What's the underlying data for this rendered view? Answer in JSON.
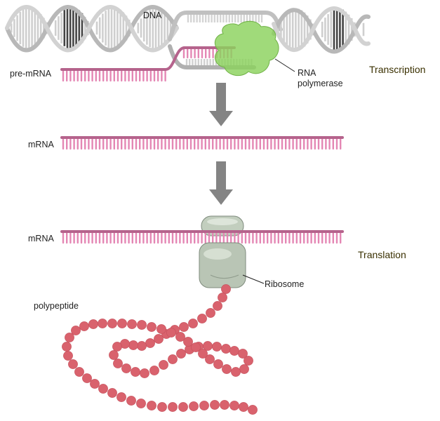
{
  "labels": {
    "dna": "DNA",
    "pre_mrna": "pre-mRNA",
    "rna_polymerase_line1": "RNA",
    "rna_polymerase_line2": "polymerase",
    "mrna_top": "mRNA",
    "mrna_bottom": "mRNA",
    "ribosome": "Ribosome",
    "polypeptide": "polypeptide"
  },
  "processes": {
    "transcription": "Transcription",
    "translation": "Translation"
  },
  "colors": {
    "mrna_backbone": "#b5638c",
    "mrna_teeth": "#e487b4",
    "dna_strand": "#c4c4c4",
    "dna_dark": "#444444",
    "polymerase": "#8bd25d",
    "ribosome": "#c2cebe",
    "polypeptide": "#d9626d",
    "arrow": "#848484"
  }
}
